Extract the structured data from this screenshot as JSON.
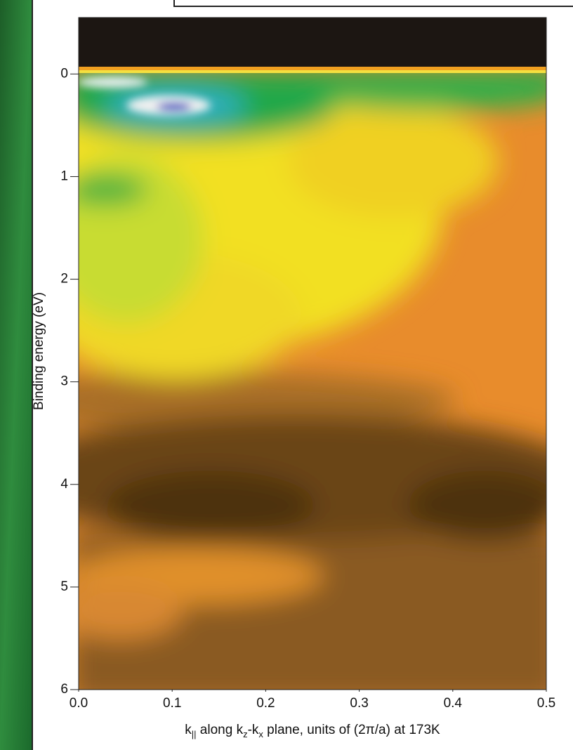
{
  "chart_data": {
    "type": "heatmap",
    "ylabel": "Binding energy (eV)",
    "xlabel": [
      "k",
      "||",
      " along k",
      "z",
      "-k",
      "x",
      " plane, units of (2π/a) at 173K"
    ],
    "xlim": [
      0,
      0.5
    ],
    "ylim": [
      6,
      -0.55
    ],
    "xticks": [
      {
        "value": 0,
        "label": "0.0"
      },
      0.1,
      0.2,
      0.3,
      0.4,
      0.5
    ],
    "yticks": [
      0,
      1,
      2,
      3,
      4,
      5,
      6
    ]
  }
}
